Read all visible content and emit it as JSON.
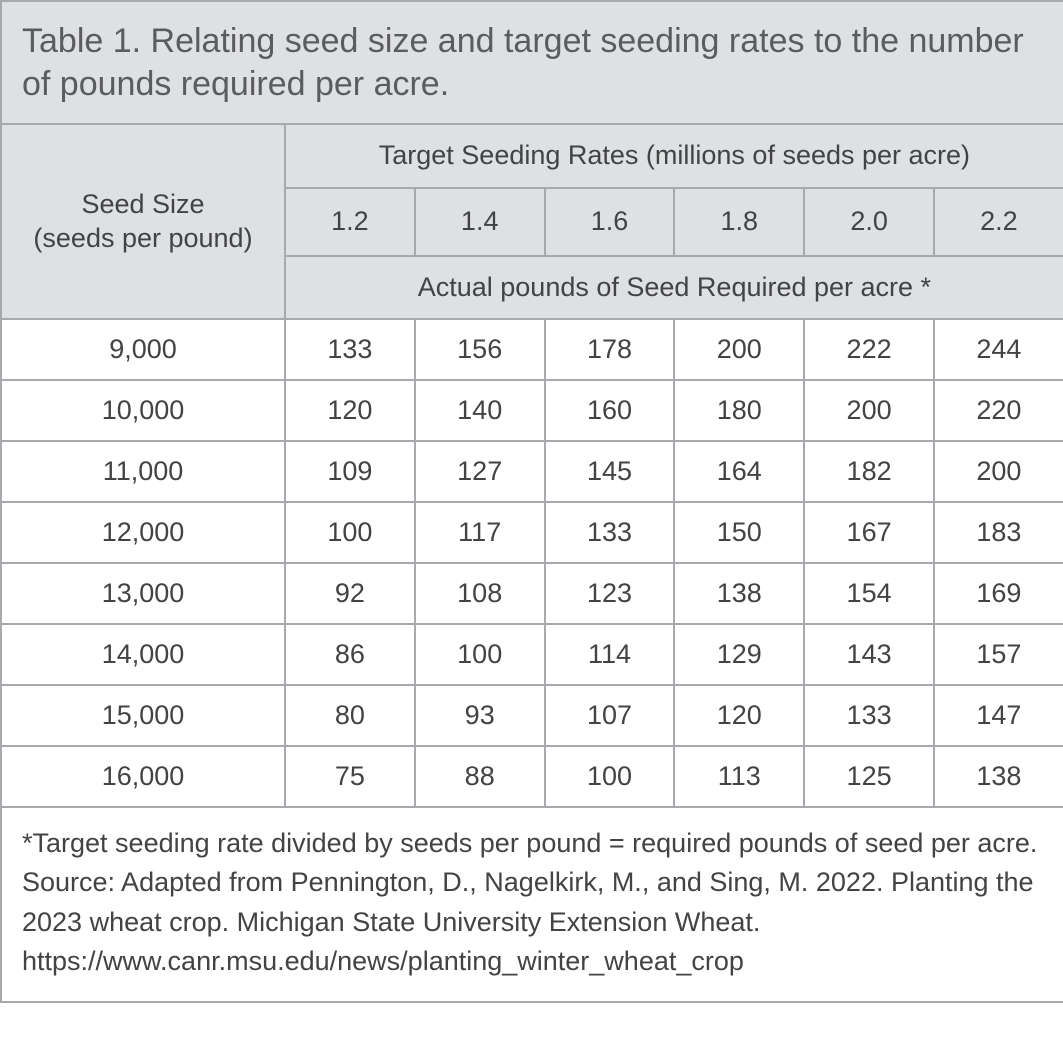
{
  "table": {
    "title": "Table 1. Relating seed size and target seeding rates to the number of pounds required per acre.",
    "seed_size_header": "Seed Size\n(seeds per pound)",
    "rates_header": "Target Seeding Rates (millions of seeds per acre)",
    "sub_header": "Actual pounds of Seed Required per acre *",
    "rate_columns": [
      "1.2",
      "1.4",
      "1.6",
      "1.8",
      "2.0",
      "2.2"
    ],
    "rows": [
      {
        "label": "9,000",
        "values": [
          "133",
          "156",
          "178",
          "200",
          "222",
          "244"
        ]
      },
      {
        "label": "10,000",
        "values": [
          "120",
          "140",
          "160",
          "180",
          "200",
          "220"
        ]
      },
      {
        "label": "11,000",
        "values": [
          "109",
          "127",
          "145",
          "164",
          "182",
          "200"
        ]
      },
      {
        "label": "12,000",
        "values": [
          "100",
          "117",
          "133",
          "150",
          "167",
          "183"
        ]
      },
      {
        "label": "13,000",
        "values": [
          "92",
          "108",
          "123",
          "138",
          "154",
          "169"
        ]
      },
      {
        "label": "14,000",
        "values": [
          "86",
          "100",
          "114",
          "129",
          "143",
          "157"
        ]
      },
      {
        "label": "15,000",
        "values": [
          "80",
          "93",
          "107",
          "120",
          "133",
          "147"
        ]
      },
      {
        "label": "16,000",
        "values": [
          "75",
          "88",
          "100",
          "113",
          "125",
          "138"
        ]
      }
    ],
    "footnote": "*Target seeding rate divided by seeds per pound = required pounds of seed per acre.\nSource: Adapted from Pennington, D., Nagelkirk, M., and Sing, M. 2022. Planting the 2023 wheat crop. Michigan State University Extension Wheat. https://www.canr.msu.edu/news/planting_winter_wheat_crop",
    "colors": {
      "header_bg": "#dfe0e1",
      "border": "#a7a9ac",
      "text": "#424345",
      "title_text": "#5b5c5e",
      "body_bg": "#ffffff"
    },
    "font_sizes": {
      "title": 34,
      "header": 27,
      "body": 27,
      "footnote": 27
    }
  }
}
